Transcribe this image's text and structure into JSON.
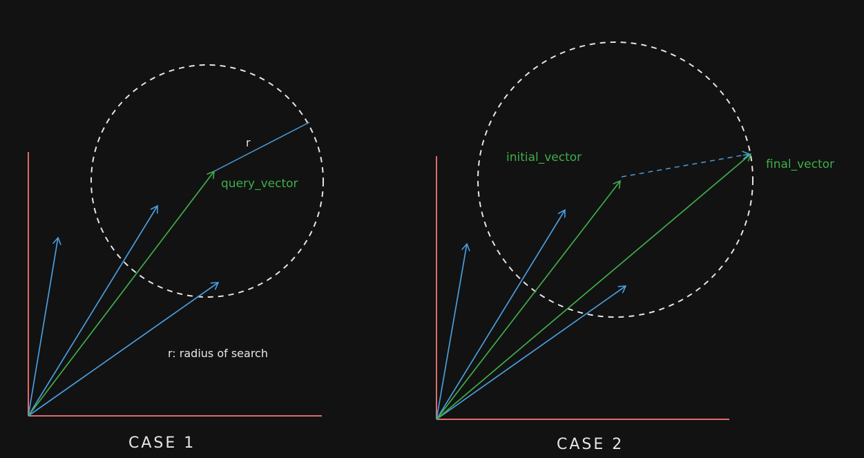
{
  "colors": {
    "background": "#121212",
    "axis": "#e06c6c",
    "blue_vector": "#4a9ee0",
    "green_vector": "#3fae4a",
    "circle": "#e6e6e6",
    "text_white": "#e6e6e6",
    "text_green": "#3fae4a"
  },
  "case1": {
    "title": "CASE 1",
    "query_label": "query_vector",
    "radius_label": "r",
    "legend": "r: radius of search"
  },
  "case2": {
    "title": "CASE 2",
    "initial_label": "initial_vector",
    "final_label": "final_vector"
  }
}
